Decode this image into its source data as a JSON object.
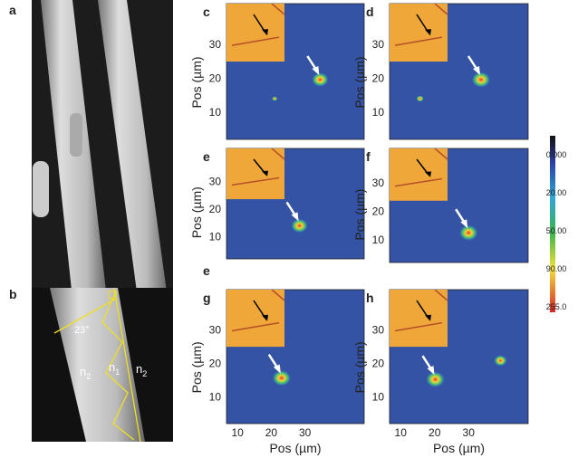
{
  "panels": {
    "a": {
      "label": "a"
    },
    "b": {
      "label": "b",
      "angle": "23°",
      "media": [
        {
          "base": "n",
          "sub": "2"
        },
        {
          "base": "n",
          "sub": "1"
        },
        {
          "base": "n",
          "sub": "2"
        }
      ]
    }
  },
  "heatmaps": [
    {
      "label": "c"
    },
    {
      "label": "d"
    },
    {
      "label": "e",
      "extra_label": "e"
    },
    {
      "label": "f"
    },
    {
      "label": "g"
    },
    {
      "label": "h"
    }
  ],
  "axes": {
    "y_label": "Pos (µm)",
    "x_label": "Pos (µm)",
    "y_ticks": [
      "30",
      "20",
      "10"
    ],
    "x_ticks": [
      "10",
      "20",
      "30"
    ]
  },
  "colorbar": {
    "labels": [
      "0.000",
      "20.00",
      "50.00",
      "90.00",
      "255.0"
    ]
  }
}
